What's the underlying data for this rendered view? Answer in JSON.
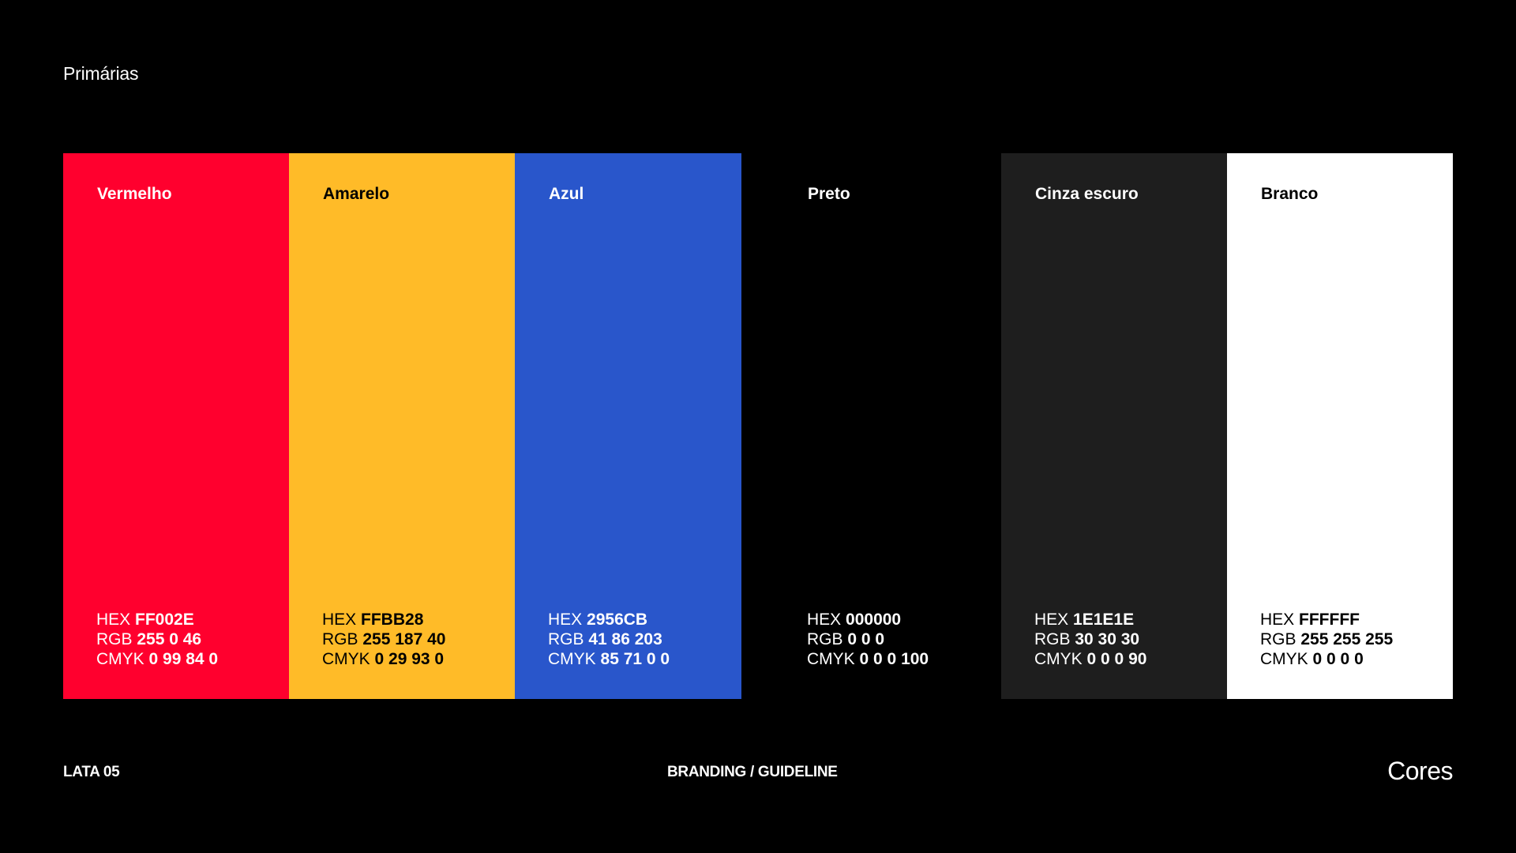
{
  "section_title": "Primárias",
  "swatches": [
    {
      "name": "Vermelho",
      "color": "#FF002E",
      "text_color": "#FFFFFF",
      "hex_key": "HEX",
      "hex": "FF002E",
      "rgb_key": "RGB",
      "rgb": "255 0 46",
      "cmyk_key": "CMYK",
      "cmyk": "0 99 84 0"
    },
    {
      "name": "Amarelo",
      "color": "#FFBB28",
      "text_color": "#000000",
      "hex_key": "HEX",
      "hex": "FFBB28",
      "rgb_key": "RGB",
      "rgb": "255 187 40",
      "cmyk_key": "CMYK",
      "cmyk": "0 29 93 0"
    },
    {
      "name": "Azul",
      "color": "#2956CB",
      "text_color": "#FFFFFF",
      "hex_key": "HEX",
      "hex": "2956CB",
      "rgb_key": "RGB",
      "rgb": "41 86 203",
      "cmyk_key": "CMYK",
      "cmyk": "85 71 0 0"
    },
    {
      "name": "Preto",
      "color": "#000000",
      "text_color": "#FFFFFF",
      "hex_key": "HEX",
      "hex": "000000",
      "rgb_key": "RGB",
      "rgb": "0 0 0",
      "cmyk_key": "CMYK",
      "cmyk": "0 0 0 100"
    },
    {
      "name": "Cinza escuro",
      "color": "#1E1E1E",
      "text_color": "#FFFFFF",
      "hex_key": "HEX",
      "hex": "1E1E1E",
      "rgb_key": "RGB",
      "rgb": "30 30 30",
      "cmyk_key": "CMYK",
      "cmyk": "0 0 0 90"
    },
    {
      "name": "Branco",
      "color": "#FFFFFF",
      "text_color": "#000000",
      "hex_key": "HEX",
      "hex": "FFFFFF",
      "rgb_key": "RGB",
      "rgb": "255 255 255",
      "cmyk_key": "CMYK",
      "cmyk": "0 0 0 0"
    }
  ],
  "footer": {
    "left": "LATA 05",
    "center": "BRANDING / GUIDELINE",
    "right": "Cores"
  }
}
